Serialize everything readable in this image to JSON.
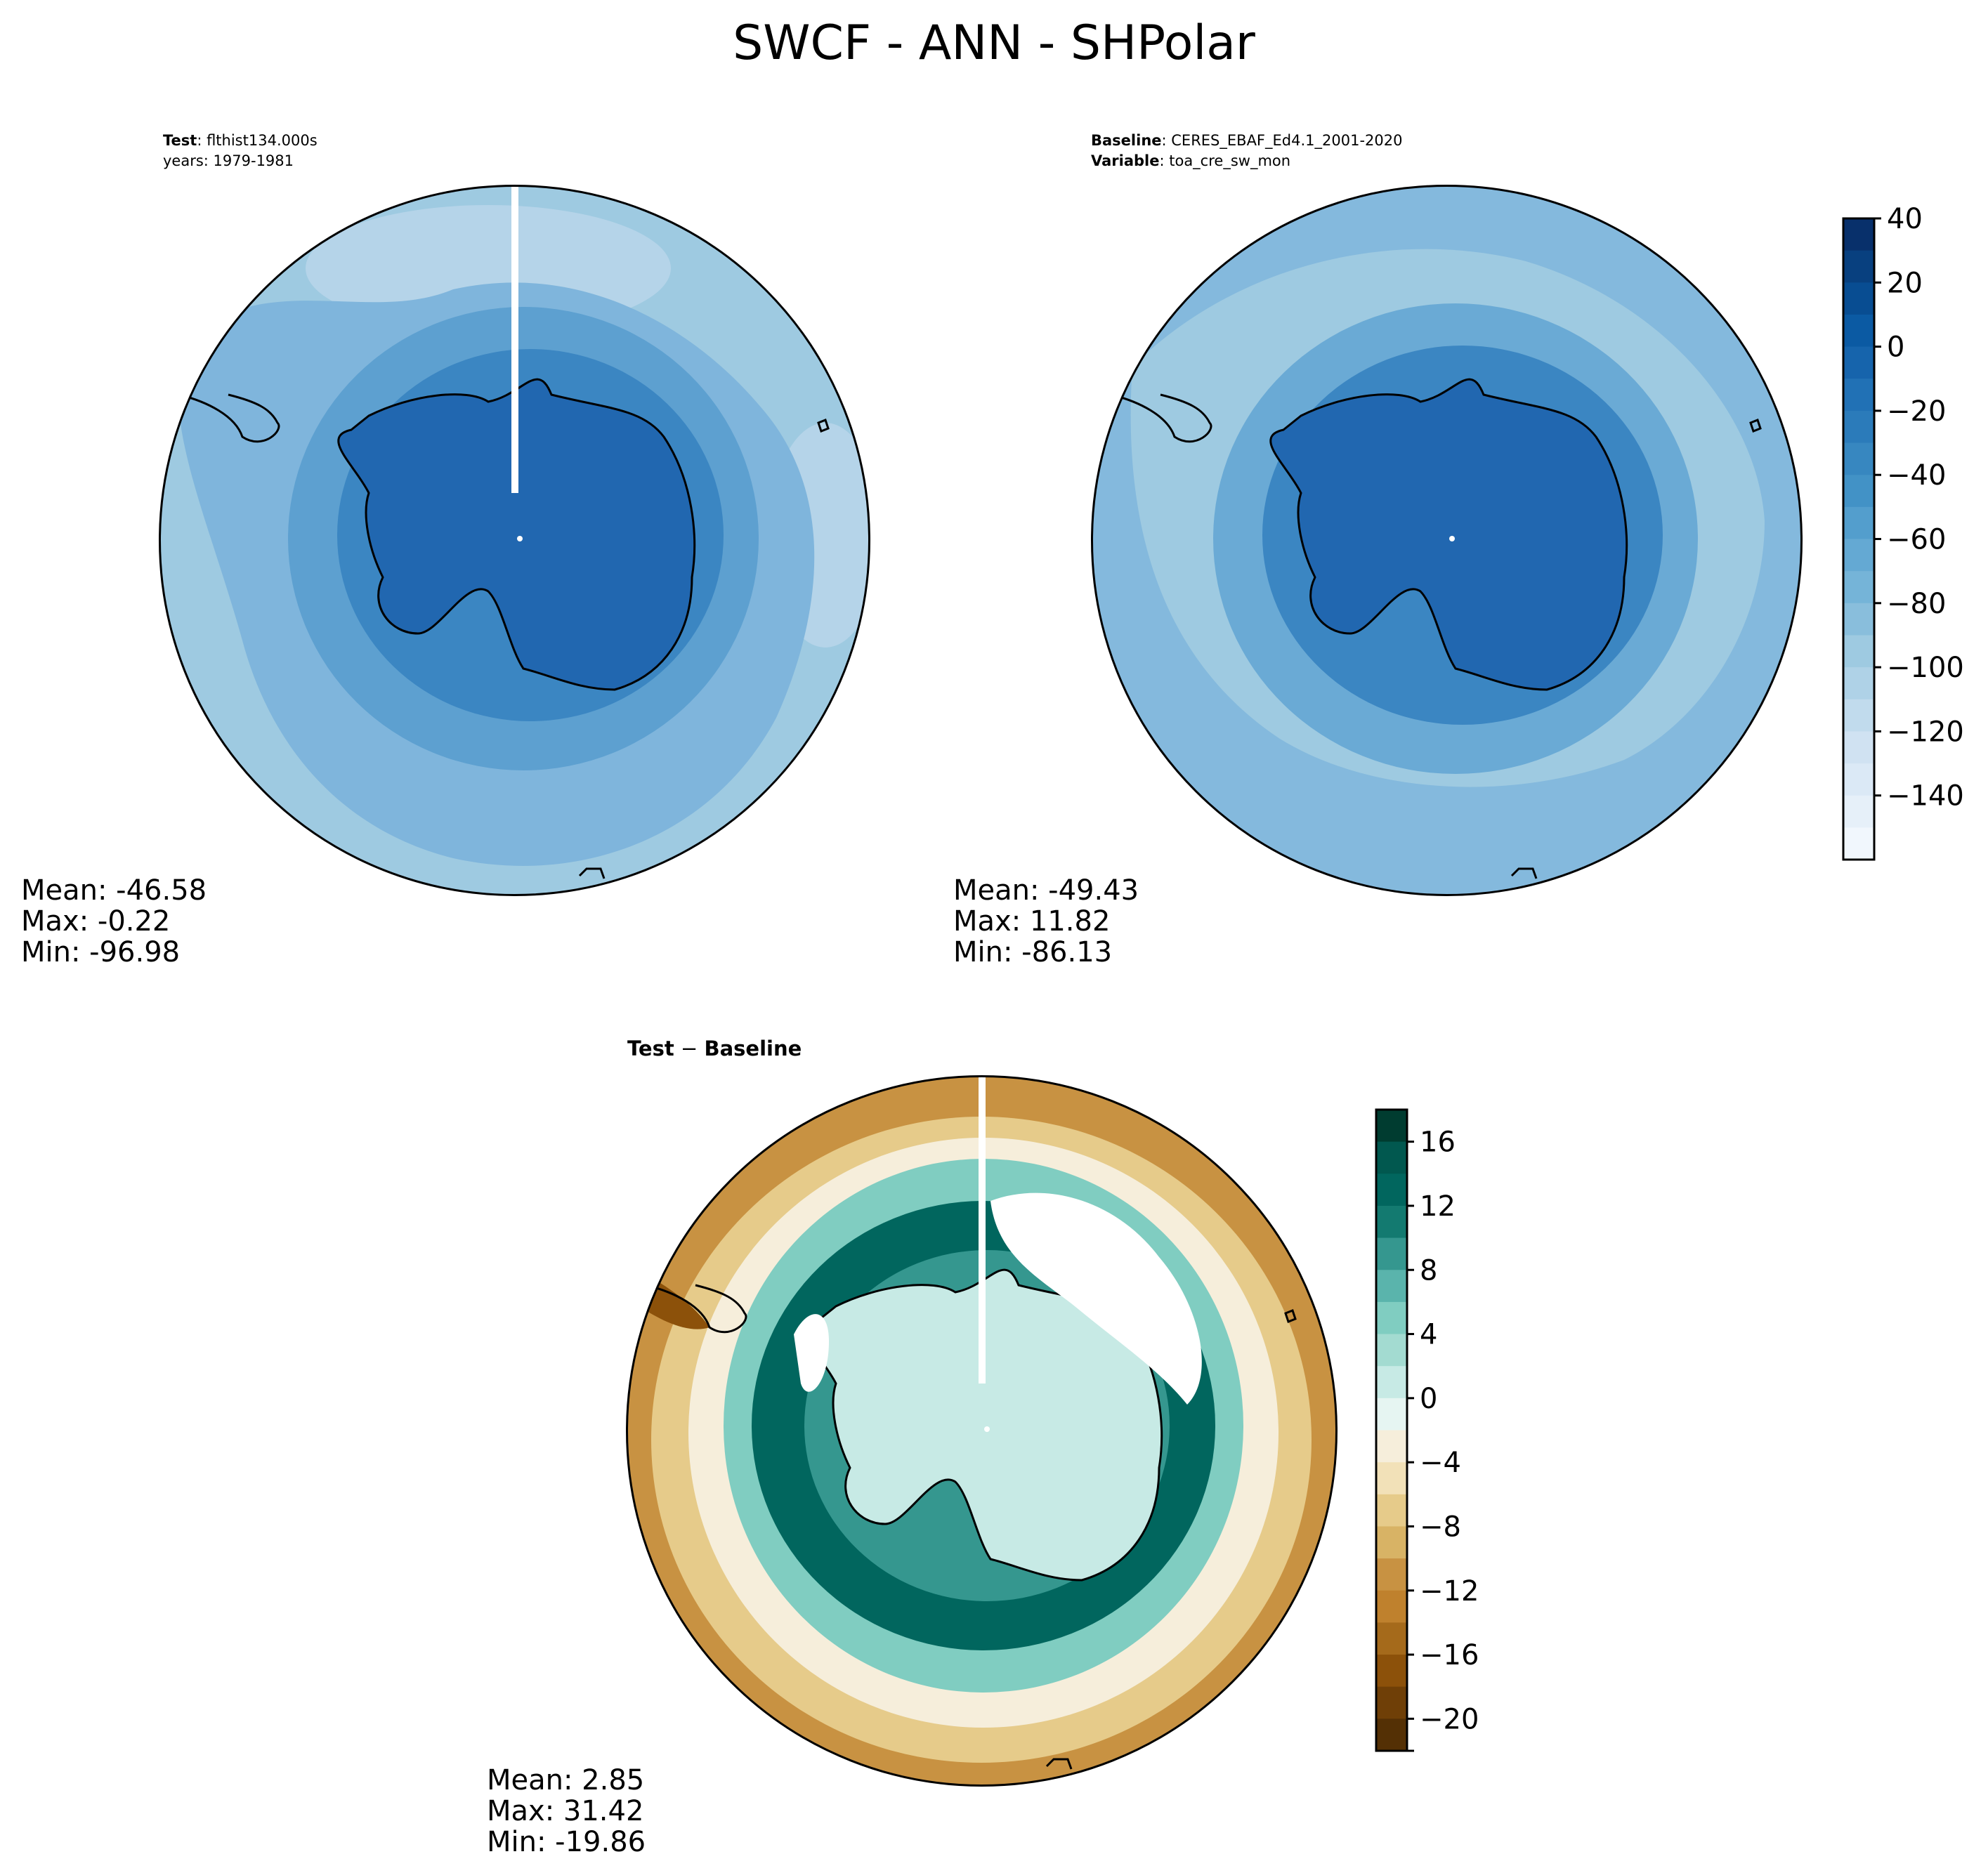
{
  "title": "SWCF - ANN - SHPolar",
  "test_panel": {
    "label_bold": "Test",
    "label_value": ": flthist134.000s",
    "years": "years: 1979-1981",
    "stats": {
      "mean": "Mean: -46.58",
      "max": "Max: -0.22",
      "min": "Min: -96.98"
    }
  },
  "baseline_panel": {
    "label_bold": "Baseline",
    "label_value": ": CERES_EBAF_Ed4.1_2001-2020",
    "var_bold": "Variable",
    "var_value": ": toa_cre_sw_mon",
    "stats": {
      "mean": "Mean: -49.43",
      "max": "Max: 11.82",
      "min": "Min: -86.13"
    }
  },
  "diff_panel": {
    "title_a": "Test",
    "title_sep": " − ",
    "title_b": "Baseline",
    "stats": {
      "mean": "Mean:  2.85",
      "max": "Max: 31.42",
      "min": "Min: -19.86"
    }
  },
  "chart_data": [
    {
      "type": "heatmap",
      "projection": "south-polar-stereographic",
      "name": "Test",
      "colormap": "Blues",
      "levels": [
        -150,
        -140,
        -130,
        -120,
        -110,
        -100,
        -90,
        -80,
        -70,
        -60,
        -50,
        -40,
        -30,
        -20,
        -10,
        0,
        10,
        20,
        30,
        40
      ],
      "field_description": {
        "antarctic_continent": -10,
        "coastal_ring": -30,
        "mid_latitudes": -55,
        "outer_ring": -75
      },
      "colors": {
        "land": "#2167b0",
        "coast": "#3b86c2",
        "ring1": "#5da0d0",
        "ring2": "#7fb5dc",
        "outer": "#9ecae1",
        "light": "#b5d4e9"
      }
    },
    {
      "type": "heatmap",
      "projection": "south-polar-stereographic",
      "name": "Baseline",
      "colormap": "Blues",
      "levels": [
        -150,
        -140,
        -130,
        -120,
        -110,
        -100,
        -90,
        -80,
        -70,
        -60,
        -50,
        -40,
        -30,
        -20,
        -10,
        0,
        10,
        20,
        30,
        40
      ],
      "field_description": {
        "antarctic_continent": -10,
        "coastal_ring": -35,
        "mid_latitudes": -60,
        "outer_ring": -65
      },
      "colors": {
        "land": "#2167b0",
        "coast": "#3b86c2",
        "ring1": "#6aaad5",
        "ring2": "#8bbedf",
        "outer": "#84b9dd"
      }
    },
    {
      "type": "heatmap",
      "projection": "south-polar-stereographic",
      "name": "Test − Baseline",
      "colormap": "BrBG",
      "levels": [
        -20,
        -18,
        -16,
        -14,
        -12,
        -10,
        -8,
        -6,
        -4,
        -2,
        0,
        2,
        4,
        6,
        8,
        10,
        12,
        14,
        16,
        18
      ],
      "field_description": {
        "antarctic_continent": 3,
        "sea_ice_ring": 14,
        "mid_latitudes": 6,
        "outer_ring": -8
      },
      "colors": {
        "positive": "#01665e",
        "mid_pos": "#5ab4ac",
        "neutral": "#f5f5f5",
        "mid_neg": "#d8b365",
        "negative": "#8c510a"
      }
    }
  ],
  "colorbars": {
    "top": {
      "ticks": [
        "40",
        "20",
        "0",
        "−20",
        "−40",
        "−60",
        "−80",
        "−100",
        "−120",
        "−140"
      ],
      "colors": [
        "#08306b",
        "#08407f",
        "#084d92",
        "#0b5aa3",
        "#1664ac",
        "#2171b5",
        "#2b7bba",
        "#3787c0",
        "#4292c6",
        "#539ecd",
        "#64a9d3",
        "#75b4d8",
        "#89bedc",
        "#9ecae1",
        "#afd2e7",
        "#c1dbed",
        "#d0e2f2",
        "#dbe9f6",
        "#e6f0f9",
        "#f1f7fd"
      ]
    },
    "bottom": {
      "ticks": [
        "16",
        "12",
        "8",
        "4",
        "0",
        "−4",
        "−8",
        "−12",
        "−16",
        "−20"
      ],
      "colors": [
        "#003c30",
        "#01584f",
        "#01665e",
        "#137a70",
        "#35978f",
        "#5ab4ac",
        "#80cdc1",
        "#a3dbd1",
        "#c7eae5",
        "#e6f5f2",
        "#f6eedb",
        "#f2e1b8",
        "#e6cb8a",
        "#d8b365",
        "#c89242",
        "#bf812d",
        "#a56a1b",
        "#8c510a",
        "#6f3f07",
        "#543005"
      ]
    }
  }
}
